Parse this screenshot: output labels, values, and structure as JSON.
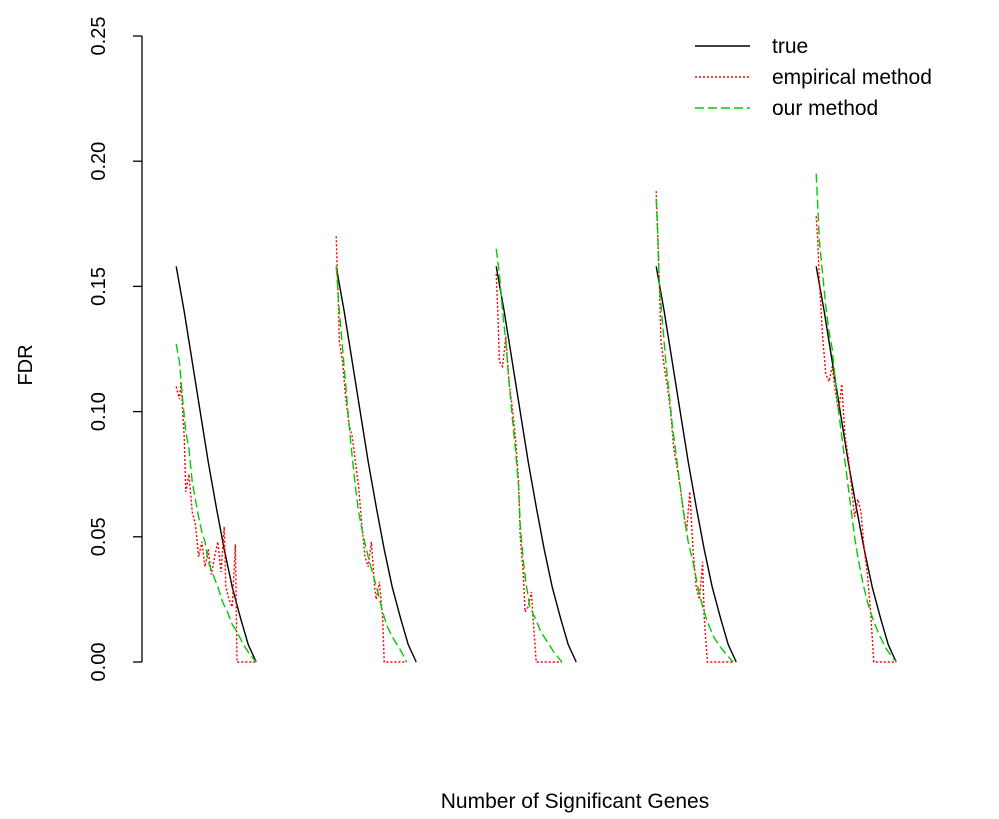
{
  "chart_data": {
    "type": "line",
    "title": "",
    "xlabel": "Number of Significant Genes",
    "ylabel": "FDR",
    "ylim": [
      0,
      0.25
    ],
    "yticks": [
      "0.00",
      "0.05",
      "0.10",
      "0.15",
      "0.20",
      "0.25"
    ],
    "ytick_values": [
      0,
      0.05,
      0.1,
      0.15,
      0.2,
      0.25
    ],
    "grid": false,
    "legend_position": "top-right",
    "xlim": [
      0,
      5
    ],
    "series": [
      {
        "name": "true",
        "color": "#000000",
        "dash": "solid",
        "segments": [
          [
            [
              0.02,
              0.158
            ],
            [
              0.07,
              0.14
            ],
            [
              0.12,
              0.12
            ],
            [
              0.17,
              0.1
            ],
            [
              0.22,
              0.08
            ],
            [
              0.27,
              0.062
            ],
            [
              0.32,
              0.045
            ],
            [
              0.37,
              0.03
            ],
            [
              0.42,
              0.018
            ],
            [
              0.47,
              0.007
            ],
            [
              0.52,
              0.0
            ]
          ],
          [
            [
              0.02,
              0.158
            ],
            [
              0.07,
              0.14
            ],
            [
              0.12,
              0.12
            ],
            [
              0.17,
              0.1
            ],
            [
              0.22,
              0.08
            ],
            [
              0.27,
              0.062
            ],
            [
              0.32,
              0.045
            ],
            [
              0.37,
              0.03
            ],
            [
              0.42,
              0.018
            ],
            [
              0.47,
              0.007
            ],
            [
              0.52,
              0.0
            ]
          ],
          [
            [
              0.02,
              0.158
            ],
            [
              0.07,
              0.14
            ],
            [
              0.12,
              0.12
            ],
            [
              0.17,
              0.1
            ],
            [
              0.22,
              0.08
            ],
            [
              0.27,
              0.062
            ],
            [
              0.32,
              0.045
            ],
            [
              0.37,
              0.03
            ],
            [
              0.42,
              0.018
            ],
            [
              0.47,
              0.007
            ],
            [
              0.52,
              0.0
            ]
          ],
          [
            [
              0.02,
              0.158
            ],
            [
              0.07,
              0.14
            ],
            [
              0.12,
              0.12
            ],
            [
              0.17,
              0.1
            ],
            [
              0.22,
              0.08
            ],
            [
              0.27,
              0.062
            ],
            [
              0.32,
              0.045
            ],
            [
              0.37,
              0.03
            ],
            [
              0.42,
              0.018
            ],
            [
              0.47,
              0.007
            ],
            [
              0.52,
              0.0
            ]
          ],
          [
            [
              0.02,
              0.158
            ],
            [
              0.07,
              0.14
            ],
            [
              0.12,
              0.12
            ],
            [
              0.17,
              0.1
            ],
            [
              0.22,
              0.08
            ],
            [
              0.27,
              0.062
            ],
            [
              0.32,
              0.045
            ],
            [
              0.37,
              0.03
            ],
            [
              0.42,
              0.018
            ],
            [
              0.47,
              0.007
            ],
            [
              0.52,
              0.0
            ]
          ]
        ]
      },
      {
        "name": "empirical method",
        "color": "#ff0000",
        "dash": "dotted",
        "segments": [
          [
            [
              0.02,
              0.11
            ],
            [
              0.04,
              0.105
            ],
            [
              0.05,
              0.112
            ],
            [
              0.07,
              0.09
            ],
            [
              0.08,
              0.068
            ],
            [
              0.1,
              0.075
            ],
            [
              0.12,
              0.06
            ],
            [
              0.14,
              0.055
            ],
            [
              0.16,
              0.042
            ],
            [
              0.18,
              0.048
            ],
            [
              0.2,
              0.038
            ],
            [
              0.22,
              0.045
            ],
            [
              0.24,
              0.035
            ],
            [
              0.26,
              0.042
            ],
            [
              0.28,
              0.048
            ],
            [
              0.3,
              0.036
            ],
            [
              0.32,
              0.054
            ],
            [
              0.33,
              0.03
            ],
            [
              0.35,
              0.025
            ],
            [
              0.37,
              0.022
            ],
            [
              0.39,
              0.047
            ],
            [
              0.4,
              0.0
            ],
            [
              0.48,
              0.0
            ],
            [
              0.52,
              0.0
            ]
          ],
          [
            [
              0.02,
              0.17
            ],
            [
              0.03,
              0.15
            ],
            [
              0.04,
              0.128
            ],
            [
              0.06,
              0.12
            ],
            [
              0.08,
              0.105
            ],
            [
              0.1,
              0.095
            ],
            [
              0.12,
              0.09
            ],
            [
              0.14,
              0.08
            ],
            [
              0.16,
              0.07
            ],
            [
              0.18,
              0.055
            ],
            [
              0.2,
              0.042
            ],
            [
              0.22,
              0.038
            ],
            [
              0.24,
              0.048
            ],
            [
              0.26,
              0.03
            ],
            [
              0.27,
              0.025
            ],
            [
              0.29,
              0.032
            ],
            [
              0.31,
              0.018
            ],
            [
              0.32,
              0.0
            ],
            [
              0.4,
              0.0
            ],
            [
              0.46,
              0.0
            ]
          ],
          [
            [
              0.02,
              0.155
            ],
            [
              0.03,
              0.14
            ],
            [
              0.04,
              0.12
            ],
            [
              0.06,
              0.118
            ],
            [
              0.08,
              0.13
            ],
            [
              0.1,
              0.112
            ],
            [
              0.12,
              0.102
            ],
            [
              0.14,
              0.09
            ],
            [
              0.16,
              0.072
            ],
            [
              0.17,
              0.05
            ],
            [
              0.19,
              0.035
            ],
            [
              0.2,
              0.02
            ],
            [
              0.22,
              0.022
            ],
            [
              0.24,
              0.028
            ],
            [
              0.25,
              0.018
            ],
            [
              0.27,
              0.0
            ],
            [
              0.38,
              0.0
            ],
            [
              0.43,
              0.0
            ]
          ],
          [
            [
              0.02,
              0.188
            ],
            [
              0.03,
              0.17
            ],
            [
              0.04,
              0.15
            ],
            [
              0.05,
              0.128
            ],
            [
              0.07,
              0.118
            ],
            [
              0.09,
              0.11
            ],
            [
              0.11,
              0.1
            ],
            [
              0.13,
              0.085
            ],
            [
              0.15,
              0.078
            ],
            [
              0.17,
              0.07
            ],
            [
              0.19,
              0.06
            ],
            [
              0.21,
              0.052
            ],
            [
              0.23,
              0.068
            ],
            [
              0.25,
              0.045
            ],
            [
              0.27,
              0.03
            ],
            [
              0.29,
              0.025
            ],
            [
              0.31,
              0.04
            ],
            [
              0.32,
              0.018
            ],
            [
              0.34,
              0.0
            ],
            [
              0.46,
              0.0
            ],
            [
              0.5,
              0.0
            ]
          ],
          [
            [
              0.02,
              0.178
            ],
            [
              0.03,
              0.168
            ],
            [
              0.04,
              0.152
            ],
            [
              0.06,
              0.13
            ],
            [
              0.08,
              0.115
            ],
            [
              0.1,
              0.112
            ],
            [
              0.12,
              0.118
            ],
            [
              0.14,
              0.108
            ],
            [
              0.16,
              0.1
            ],
            [
              0.18,
              0.111
            ],
            [
              0.2,
              0.09
            ],
            [
              0.22,
              0.082
            ],
            [
              0.24,
              0.07
            ],
            [
              0.26,
              0.058
            ],
            [
              0.28,
              0.065
            ],
            [
              0.3,
              0.06
            ],
            [
              0.32,
              0.045
            ],
            [
              0.34,
              0.035
            ],
            [
              0.36,
              0.02
            ],
            [
              0.38,
              0.0
            ],
            [
              0.48,
              0.0
            ],
            [
              0.52,
              0.0
            ]
          ]
        ]
      },
      {
        "name": "our method",
        "color": "#00cc00",
        "dash": "dashed",
        "segments": [
          [
            [
              0.02,
              0.127
            ],
            [
              0.04,
              0.12
            ],
            [
              0.06,
              0.105
            ],
            [
              0.08,
              0.092
            ],
            [
              0.1,
              0.085
            ],
            [
              0.12,
              0.072
            ],
            [
              0.14,
              0.065
            ],
            [
              0.16,
              0.058
            ],
            [
              0.18,
              0.052
            ],
            [
              0.2,
              0.048
            ],
            [
              0.22,
              0.04
            ],
            [
              0.25,
              0.035
            ],
            [
              0.28,
              0.03
            ],
            [
              0.31,
              0.024
            ],
            [
              0.34,
              0.02
            ],
            [
              0.37,
              0.015
            ],
            [
              0.4,
              0.012
            ],
            [
              0.44,
              0.007
            ],
            [
              0.48,
              0.003
            ],
            [
              0.52,
              0.0
            ]
          ],
          [
            [
              0.02,
              0.158
            ],
            [
              0.04,
              0.14
            ],
            [
              0.06,
              0.125
            ],
            [
              0.08,
              0.11
            ],
            [
              0.1,
              0.095
            ],
            [
              0.12,
              0.082
            ],
            [
              0.14,
              0.07
            ],
            [
              0.16,
              0.06
            ],
            [
              0.19,
              0.05
            ],
            [
              0.22,
              0.042
            ],
            [
              0.25,
              0.035
            ],
            [
              0.28,
              0.028
            ],
            [
              0.31,
              0.02
            ],
            [
              0.34,
              0.014
            ],
            [
              0.38,
              0.009
            ],
            [
              0.42,
              0.005
            ],
            [
              0.46,
              0.0
            ]
          ],
          [
            [
              0.02,
              0.165
            ],
            [
              0.04,
              0.155
            ],
            [
              0.06,
              0.14
            ],
            [
              0.08,
              0.128
            ],
            [
              0.1,
              0.112
            ],
            [
              0.12,
              0.098
            ],
            [
              0.14,
              0.085
            ],
            [
              0.16,
              0.07
            ],
            [
              0.17,
              0.055
            ],
            [
              0.19,
              0.04
            ],
            [
              0.21,
              0.03
            ],
            [
              0.23,
              0.022
            ],
            [
              0.26,
              0.018
            ],
            [
              0.3,
              0.012
            ],
            [
              0.34,
              0.008
            ],
            [
              0.38,
              0.004
            ],
            [
              0.43,
              0.0
            ]
          ],
          [
            [
              0.02,
              0.185
            ],
            [
              0.03,
              0.17
            ],
            [
              0.04,
              0.15
            ],
            [
              0.06,
              0.135
            ],
            [
              0.08,
              0.12
            ],
            [
              0.1,
              0.108
            ],
            [
              0.12,
              0.095
            ],
            [
              0.14,
              0.085
            ],
            [
              0.16,
              0.075
            ],
            [
              0.18,
              0.065
            ],
            [
              0.2,
              0.056
            ],
            [
              0.22,
              0.048
            ],
            [
              0.25,
              0.04
            ],
            [
              0.28,
              0.03
            ],
            [
              0.31,
              0.022
            ],
            [
              0.34,
              0.016
            ],
            [
              0.38,
              0.01
            ],
            [
              0.42,
              0.006
            ],
            [
              0.46,
              0.003
            ],
            [
              0.5,
              0.0
            ]
          ],
          [
            [
              0.02,
              0.195
            ],
            [
              0.03,
              0.182
            ],
            [
              0.04,
              0.168
            ],
            [
              0.06,
              0.155
            ],
            [
              0.08,
              0.142
            ],
            [
              0.1,
              0.132
            ],
            [
              0.12,
              0.125
            ],
            [
              0.14,
              0.112
            ],
            [
              0.16,
              0.1
            ],
            [
              0.18,
              0.09
            ],
            [
              0.2,
              0.08
            ],
            [
              0.22,
              0.07
            ],
            [
              0.24,
              0.06
            ],
            [
              0.26,
              0.05
            ],
            [
              0.28,
              0.042
            ],
            [
              0.31,
              0.032
            ],
            [
              0.34,
              0.024
            ],
            [
              0.38,
              0.016
            ],
            [
              0.42,
              0.01
            ],
            [
              0.46,
              0.005
            ],
            [
              0.52,
              0.0
            ]
          ]
        ]
      }
    ]
  }
}
